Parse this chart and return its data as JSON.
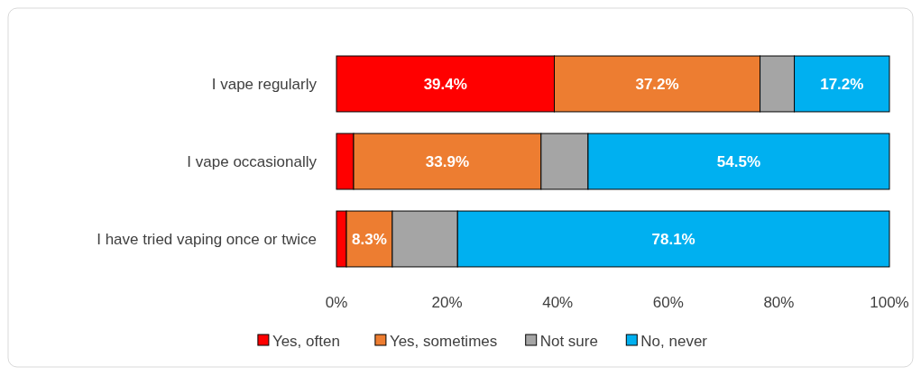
{
  "chart_data": {
    "type": "bar",
    "orientation": "horizontal",
    "stacked": true,
    "categories": [
      "I vape regularly",
      "I vape occasionally",
      "I have tried vaping once or twice"
    ],
    "series": [
      {
        "name": "Yes, often",
        "color": "#ff0000",
        "values": [
          39.4,
          3.1,
          1.8
        ],
        "value_labels": [
          "39.4%",
          null,
          null
        ]
      },
      {
        "name": "Yes, sometimes",
        "color": "#ed7d31",
        "values": [
          37.2,
          33.9,
          8.3
        ],
        "value_labels": [
          "37.2%",
          "33.9%",
          "8.3%"
        ]
      },
      {
        "name": "Not sure",
        "color": "#a5a5a5",
        "values": [
          6.2,
          8.5,
          11.8
        ],
        "value_labels": [
          null,
          null,
          null
        ]
      },
      {
        "name": "No, never",
        "color": "#00b0f0",
        "values": [
          17.2,
          54.5,
          78.1
        ],
        "value_labels": [
          "17.2%",
          "54.5%",
          "78.1%"
        ]
      }
    ],
    "xlim": [
      0,
      100
    ],
    "xticks": [
      {
        "value": 0,
        "label": "0%"
      },
      {
        "value": 20,
        "label": "20%"
      },
      {
        "value": 40,
        "label": "40%"
      },
      {
        "value": 60,
        "label": "60%"
      },
      {
        "value": 80,
        "label": "80%"
      },
      {
        "value": 100,
        "label": "100%"
      }
    ],
    "legend": "bottom"
  }
}
